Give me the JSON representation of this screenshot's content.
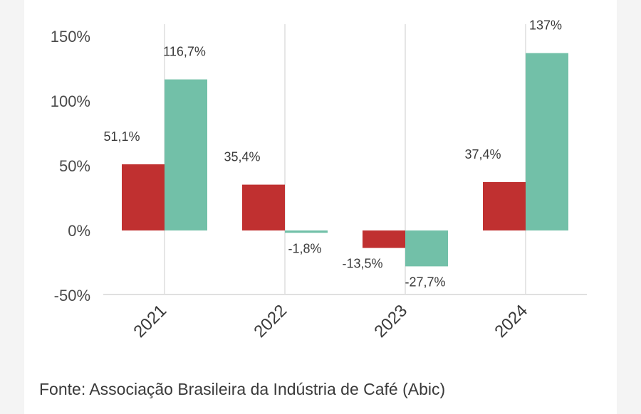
{
  "chart_data": {
    "type": "bar",
    "categories": [
      "2021",
      "2022",
      "2023",
      "2024"
    ],
    "series": [
      {
        "color": "#c03030",
        "values": [
          51.1,
          35.4,
          -13.5,
          37.4
        ],
        "labels": [
          "51,1%",
          "35,4%",
          "-13,5%",
          "37,4%"
        ]
      },
      {
        "color": "#72c0a8",
        "values": [
          116.7,
          -1.8,
          -27.7,
          137
        ],
        "labels": [
          "116,7%",
          "-1,8%",
          "-27,7%",
          "137%"
        ]
      }
    ],
    "yticks": [
      150,
      100,
      50,
      0,
      -50
    ],
    "ytick_labels": [
      "150%",
      "100%",
      "50%",
      "0%",
      "-50%"
    ],
    "ylim": [
      -50,
      150
    ],
    "grid": "vertical"
  },
  "source": "Fonte: Associação Brasileira da Indústria de Café (Abic)"
}
